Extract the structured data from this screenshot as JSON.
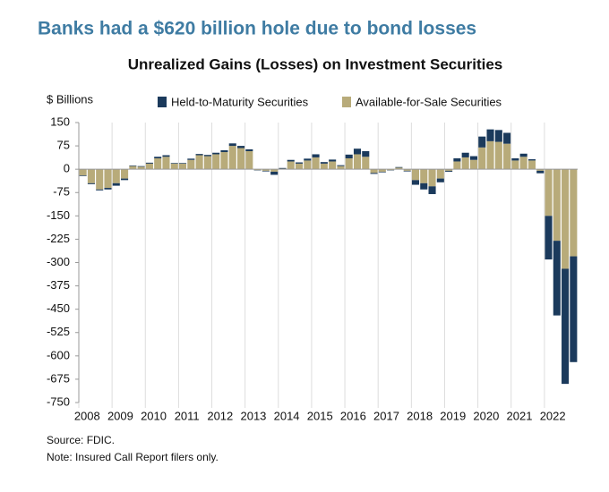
{
  "headline": "Banks had a $620 billion hole due to bond losses",
  "source": "Source: FDIC.",
  "note": "Note: Insured Call Report filers only.",
  "chart_data": {
    "type": "stacked_bar",
    "title": "Unrealized Gains (Losses) on Investment Securities",
    "y_label": "$ Billions",
    "categories": [
      "2008",
      null,
      null,
      null,
      "2009",
      null,
      null,
      null,
      "2010",
      null,
      null,
      null,
      "2011",
      null,
      null,
      null,
      "2012",
      null,
      null,
      null,
      "2013",
      null,
      null,
      null,
      "2014",
      null,
      null,
      null,
      "2015",
      null,
      null,
      null,
      "2016",
      null,
      null,
      null,
      "2017",
      null,
      null,
      null,
      "2018",
      null,
      null,
      null,
      "2019",
      null,
      null,
      null,
      "2020",
      null,
      null,
      null,
      "2021",
      null,
      null,
      null,
      "2022",
      null,
      null,
      null
    ],
    "series": [
      {
        "name": "Available-for-Sale Securities",
        "color": "#b8ab7a",
        "values": [
          -20,
          -45,
          -65,
          -60,
          -45,
          -30,
          10,
          8,
          18,
          35,
          40,
          18,
          18,
          30,
          45,
          42,
          48,
          55,
          75,
          68,
          58,
          -3,
          -5,
          -8,
          2,
          25,
          18,
          28,
          38,
          18,
          25,
          10,
          35,
          48,
          40,
          -12,
          -8,
          -3,
          5,
          -5,
          -35,
          -45,
          -55,
          -30,
          -5,
          25,
          38,
          30,
          70,
          90,
          88,
          82,
          28,
          40,
          28,
          -5,
          -150,
          -230,
          -320,
          -280
        ]
      },
      {
        "name": "Held-to-Maturity Securities",
        "color": "#1b3a5c",
        "values": [
          -2,
          -3,
          -3,
          -5,
          -8,
          -5,
          2,
          2,
          3,
          5,
          5,
          2,
          2,
          4,
          4,
          4,
          5,
          6,
          8,
          7,
          6,
          -1,
          -2,
          -10,
          2,
          5,
          4,
          6,
          10,
          5,
          6,
          3,
          12,
          18,
          18,
          -3,
          -2,
          -1,
          2,
          -2,
          -15,
          -20,
          -25,
          -12,
          -3,
          10,
          15,
          12,
          35,
          38,
          38,
          35,
          7,
          10,
          4,
          -8,
          -140,
          -240,
          -370,
          -340
        ]
      }
    ],
    "legend_order": [
      1,
      0
    ],
    "ylim": [
      -750,
      150
    ],
    "yticks": [
      150,
      75,
      0,
      -75,
      -150,
      -225,
      -300,
      -375,
      -450,
      -525,
      -600,
      -675,
      -750
    ]
  }
}
